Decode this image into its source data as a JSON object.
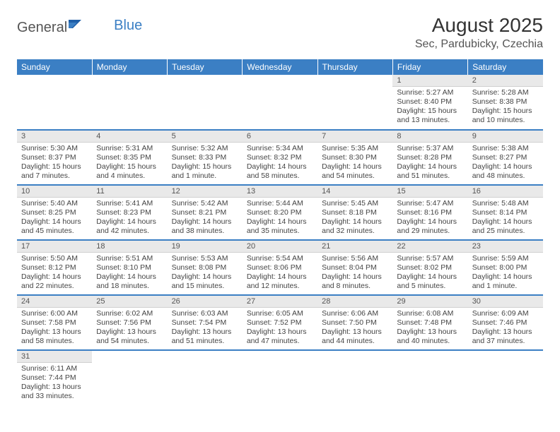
{
  "logo": {
    "text1": "General",
    "text2": "Blue"
  },
  "title": "August 2025",
  "location": "Sec, Pardubicky, Czechia",
  "colors": {
    "header_bg": "#3b7fc4",
    "header_text": "#ffffff",
    "daynum_bg": "#e9e9e9",
    "row_divider": "#3b7fc4",
    "text": "#444444"
  },
  "weekdays": [
    "Sunday",
    "Monday",
    "Tuesday",
    "Wednesday",
    "Thursday",
    "Friday",
    "Saturday"
  ],
  "weeks": [
    [
      null,
      null,
      null,
      null,
      null,
      {
        "n": "1",
        "sr": "Sunrise: 5:27 AM",
        "ss": "Sunset: 8:40 PM",
        "dl": "Daylight: 15 hours and 13 minutes."
      },
      {
        "n": "2",
        "sr": "Sunrise: 5:28 AM",
        "ss": "Sunset: 8:38 PM",
        "dl": "Daylight: 15 hours and 10 minutes."
      }
    ],
    [
      {
        "n": "3",
        "sr": "Sunrise: 5:30 AM",
        "ss": "Sunset: 8:37 PM",
        "dl": "Daylight: 15 hours and 7 minutes."
      },
      {
        "n": "4",
        "sr": "Sunrise: 5:31 AM",
        "ss": "Sunset: 8:35 PM",
        "dl": "Daylight: 15 hours and 4 minutes."
      },
      {
        "n": "5",
        "sr": "Sunrise: 5:32 AM",
        "ss": "Sunset: 8:33 PM",
        "dl": "Daylight: 15 hours and 1 minute."
      },
      {
        "n": "6",
        "sr": "Sunrise: 5:34 AM",
        "ss": "Sunset: 8:32 PM",
        "dl": "Daylight: 14 hours and 58 minutes."
      },
      {
        "n": "7",
        "sr": "Sunrise: 5:35 AM",
        "ss": "Sunset: 8:30 PM",
        "dl": "Daylight: 14 hours and 54 minutes."
      },
      {
        "n": "8",
        "sr": "Sunrise: 5:37 AM",
        "ss": "Sunset: 8:28 PM",
        "dl": "Daylight: 14 hours and 51 minutes."
      },
      {
        "n": "9",
        "sr": "Sunrise: 5:38 AM",
        "ss": "Sunset: 8:27 PM",
        "dl": "Daylight: 14 hours and 48 minutes."
      }
    ],
    [
      {
        "n": "10",
        "sr": "Sunrise: 5:40 AM",
        "ss": "Sunset: 8:25 PM",
        "dl": "Daylight: 14 hours and 45 minutes."
      },
      {
        "n": "11",
        "sr": "Sunrise: 5:41 AM",
        "ss": "Sunset: 8:23 PM",
        "dl": "Daylight: 14 hours and 42 minutes."
      },
      {
        "n": "12",
        "sr": "Sunrise: 5:42 AM",
        "ss": "Sunset: 8:21 PM",
        "dl": "Daylight: 14 hours and 38 minutes."
      },
      {
        "n": "13",
        "sr": "Sunrise: 5:44 AM",
        "ss": "Sunset: 8:20 PM",
        "dl": "Daylight: 14 hours and 35 minutes."
      },
      {
        "n": "14",
        "sr": "Sunrise: 5:45 AM",
        "ss": "Sunset: 8:18 PM",
        "dl": "Daylight: 14 hours and 32 minutes."
      },
      {
        "n": "15",
        "sr": "Sunrise: 5:47 AM",
        "ss": "Sunset: 8:16 PM",
        "dl": "Daylight: 14 hours and 29 minutes."
      },
      {
        "n": "16",
        "sr": "Sunrise: 5:48 AM",
        "ss": "Sunset: 8:14 PM",
        "dl": "Daylight: 14 hours and 25 minutes."
      }
    ],
    [
      {
        "n": "17",
        "sr": "Sunrise: 5:50 AM",
        "ss": "Sunset: 8:12 PM",
        "dl": "Daylight: 14 hours and 22 minutes."
      },
      {
        "n": "18",
        "sr": "Sunrise: 5:51 AM",
        "ss": "Sunset: 8:10 PM",
        "dl": "Daylight: 14 hours and 18 minutes."
      },
      {
        "n": "19",
        "sr": "Sunrise: 5:53 AM",
        "ss": "Sunset: 8:08 PM",
        "dl": "Daylight: 14 hours and 15 minutes."
      },
      {
        "n": "20",
        "sr": "Sunrise: 5:54 AM",
        "ss": "Sunset: 8:06 PM",
        "dl": "Daylight: 14 hours and 12 minutes."
      },
      {
        "n": "21",
        "sr": "Sunrise: 5:56 AM",
        "ss": "Sunset: 8:04 PM",
        "dl": "Daylight: 14 hours and 8 minutes."
      },
      {
        "n": "22",
        "sr": "Sunrise: 5:57 AM",
        "ss": "Sunset: 8:02 PM",
        "dl": "Daylight: 14 hours and 5 minutes."
      },
      {
        "n": "23",
        "sr": "Sunrise: 5:59 AM",
        "ss": "Sunset: 8:00 PM",
        "dl": "Daylight: 14 hours and 1 minute."
      }
    ],
    [
      {
        "n": "24",
        "sr": "Sunrise: 6:00 AM",
        "ss": "Sunset: 7:58 PM",
        "dl": "Daylight: 13 hours and 58 minutes."
      },
      {
        "n": "25",
        "sr": "Sunrise: 6:02 AM",
        "ss": "Sunset: 7:56 PM",
        "dl": "Daylight: 13 hours and 54 minutes."
      },
      {
        "n": "26",
        "sr": "Sunrise: 6:03 AM",
        "ss": "Sunset: 7:54 PM",
        "dl": "Daylight: 13 hours and 51 minutes."
      },
      {
        "n": "27",
        "sr": "Sunrise: 6:05 AM",
        "ss": "Sunset: 7:52 PM",
        "dl": "Daylight: 13 hours and 47 minutes."
      },
      {
        "n": "28",
        "sr": "Sunrise: 6:06 AM",
        "ss": "Sunset: 7:50 PM",
        "dl": "Daylight: 13 hours and 44 minutes."
      },
      {
        "n": "29",
        "sr": "Sunrise: 6:08 AM",
        "ss": "Sunset: 7:48 PM",
        "dl": "Daylight: 13 hours and 40 minutes."
      },
      {
        "n": "30",
        "sr": "Sunrise: 6:09 AM",
        "ss": "Sunset: 7:46 PM",
        "dl": "Daylight: 13 hours and 37 minutes."
      }
    ],
    [
      {
        "n": "31",
        "sr": "Sunrise: 6:11 AM",
        "ss": "Sunset: 7:44 PM",
        "dl": "Daylight: 13 hours and 33 minutes."
      },
      null,
      null,
      null,
      null,
      null,
      null
    ]
  ]
}
